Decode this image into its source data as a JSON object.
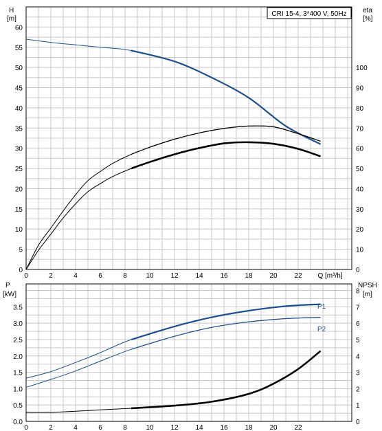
{
  "chart_data": [
    {
      "type": "line",
      "title": "CRI 15-4, 3*400 V, 50Hz",
      "x_label": "Q [m³/h]",
      "x_ticks": [
        "0",
        "2",
        "4",
        "6",
        "8",
        "10",
        "12",
        "14",
        "16",
        "18",
        "20",
        "22"
      ],
      "x_unit_tick": "Q [m³/h]",
      "left_axis": {
        "label_line1": "H",
        "label_line2": "[m]",
        "ylim": [
          0,
          65
        ],
        "ticks": [
          "0",
          "5",
          "10",
          "15",
          "20",
          "25",
          "30",
          "35",
          "40",
          "45",
          "50",
          "55",
          "60"
        ]
      },
      "right_axis": {
        "label_line1": "eta",
        "label_line2": "[%]",
        "ylim": [
          0,
          130
        ],
        "ticks": [
          "0",
          "10",
          "20",
          "30",
          "40",
          "50",
          "60",
          "70",
          "80",
          "90",
          "100"
        ]
      },
      "grid": true,
      "series": [
        {
          "axis": "left",
          "color": "#1f4e8c",
          "x": [
            0,
            2,
            4,
            6,
            8.5,
            12,
            15,
            18,
            21,
            23.8
          ],
          "y": [
            57,
            56.2,
            55.6,
            55,
            54.2,
            51.5,
            47.5,
            42.5,
            35.5,
            31
          ]
        },
        {
          "axis": "right",
          "color": "#000000",
          "x": [
            0,
            1,
            2,
            3,
            4,
            5,
            6,
            7,
            8.5,
            10,
            12,
            14,
            16,
            18,
            20,
            22,
            23.8
          ],
          "y": [
            0,
            12,
            20.5,
            29,
            37,
            44,
            48.5,
            52.5,
            57,
            60.5,
            64.5,
            67.6,
            69.8,
            71,
            70.6,
            67.2,
            63.5
          ]
        },
        {
          "axis": "right",
          "color": "#000000",
          "x": [
            0,
            1,
            2,
            3,
            4,
            5,
            6,
            7,
            8.5,
            10,
            12,
            14,
            16,
            18,
            20,
            22,
            23.8
          ],
          "y": [
            0,
            9.5,
            17.5,
            25.5,
            32.5,
            38.5,
            42.5,
            46,
            50,
            53.2,
            57,
            60.1,
            62.4,
            63,
            62.2,
            59.7,
            56
          ]
        }
      ]
    },
    {
      "type": "line",
      "x_ticks": [
        "0",
        "2",
        "4",
        "6",
        "8",
        "10",
        "12",
        "14",
        "16",
        "18",
        "20",
        "22"
      ],
      "left_axis": {
        "label_line1": "P",
        "label_line2": "[kW]",
        "ylim": [
          0,
          4.2
        ],
        "ticks": [
          "0.0",
          "0.5",
          "1.0",
          "1.5",
          "2.0",
          "2.5",
          "3.0",
          "3.5"
        ]
      },
      "right_axis": {
        "label_line1": "NPSH",
        "label_line2": "[m]",
        "ylim": [
          0,
          8.4
        ],
        "ticks": [
          "0",
          "1",
          "2",
          "3",
          "4",
          "5",
          "6",
          "7",
          "8"
        ]
      },
      "grid": true,
      "series": [
        {
          "name": "P1",
          "axis": "left",
          "color": "#1f4e8c",
          "x": [
            0,
            2,
            4,
            6,
            8.5,
            12,
            15,
            18,
            21,
            23.8
          ],
          "y": [
            1.32,
            1.52,
            1.8,
            2.1,
            2.5,
            2.9,
            3.18,
            3.38,
            3.52,
            3.58
          ]
        },
        {
          "name": "P2",
          "axis": "left",
          "color": "#1f4e8c",
          "x": [
            0,
            2,
            4,
            6,
            8.5,
            12,
            15,
            18,
            21,
            23.8
          ],
          "y": [
            1.04,
            1.28,
            1.54,
            1.84,
            2.2,
            2.6,
            2.87,
            3.04,
            3.14,
            3.18
          ]
        },
        {
          "axis": "right",
          "color": "#000000",
          "x": [
            0,
            2,
            4,
            6,
            8.5,
            12,
            15,
            18,
            20,
            22,
            23.8
          ],
          "y": [
            0.55,
            0.55,
            0.62,
            0.7,
            0.8,
            0.96,
            1.2,
            1.68,
            2.3,
            3.2,
            4.3
          ]
        }
      ]
    }
  ]
}
